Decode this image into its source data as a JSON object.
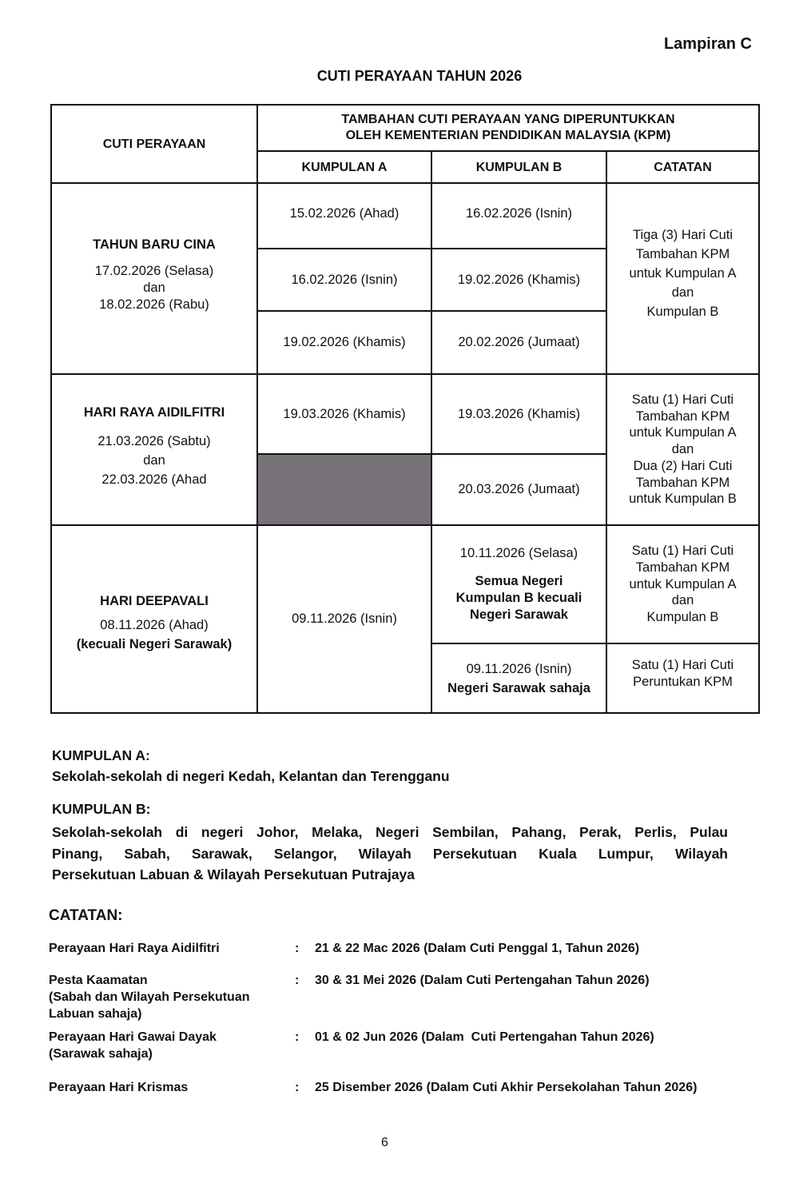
{
  "lampiran": "Lampiran C",
  "title": "CUTI PERAYAAN TAHUN 2026",
  "table": {
    "h_cuti": "CUTI PERAYAAN",
    "h_tambahan_1": "TAMBAHAN CUTI PERAYAAN YANG DIPERUNTUKKAN",
    "h_tambahan_2": "OLEH KEMENTERIAN PENDIDIKAN MALAYSIA (KPM)",
    "h_a": "KUMPULAN A",
    "h_b": "KUMPULAN B",
    "h_catatan": "CATATAN",
    "tbc": {
      "name": "TAHUN BARU CINA",
      "d1": "17.02.2026 (Selasa)",
      "dan": "dan",
      "d2": "18.02.2026 (Rabu)",
      "a": [
        "15.02.2026 (Ahad)",
        "16.02.2026 (Isnin)",
        "19.02.2026 (Khamis)"
      ],
      "b": [
        "16.02.2026 (Isnin)",
        "19.02.2026 (Khamis)",
        "20.02.2026 (Jumaat)"
      ],
      "note": [
        "Tiga (3) Hari Cuti",
        "Tambahan KPM",
        "untuk Kumpulan A",
        "dan",
        "Kumpulan B"
      ]
    },
    "hra": {
      "name": "HARI RAYA AIDILFITRI",
      "d1": "21.03.2026 (Sabtu)",
      "dan": "dan",
      "d2": "22.03.2026 (Ahad",
      "a": [
        "19.03.2026 (Khamis)"
      ],
      "b": [
        "19.03.2026 (Khamis)",
        "20.03.2026 (Jumaat)"
      ],
      "note": [
        "Satu (1) Hari Cuti",
        "Tambahan KPM",
        "untuk Kumpulan A",
        "dan",
        "Dua (2) Hari Cuti",
        "Tambahan KPM",
        "untuk Kumpulan B"
      ]
    },
    "dee": {
      "name": "HARI DEEPAVALI",
      "d1": "08.11.2026 (Ahad)",
      "d2": "(kecuali Negeri Sarawak)",
      "a": "09.11.2026 (Isnin)",
      "b1_date": "10.11.2026 (Selasa)",
      "b1_note": [
        "Semua Negeri",
        "Kumpulan B kecuali",
        "Negeri Sarawak"
      ],
      "b2_date": "09.11.2026 (Isnin)",
      "b2_note": "Negeri Sarawak sahaja",
      "note1": [
        "Satu (1) Hari Cuti",
        "Tambahan KPM",
        "untuk Kumpulan A",
        "dan",
        "Kumpulan B"
      ],
      "note2": [
        "Satu (1) Hari Cuti",
        "Peruntukan KPM"
      ]
    }
  },
  "kumpulan_a": {
    "label": "KUMPULAN A:",
    "text": "Sekolah-sekolah di negeri Kedah, Kelantan dan Terengganu"
  },
  "kumpulan_b": {
    "label": "KUMPULAN B:",
    "lines": [
      "Sekolah-sekolah di negeri Johor, Melaka, Negeri Sembilan, Pahang, Perak, Perlis, Pulau",
      "Pinang, Sabah, Sarawak, Selangor, Wilayah Persekutuan Kuala Lumpur, Wilayah",
      "Persekutuan Labuan & Wilayah Persekutuan Putrajaya"
    ]
  },
  "catatan": {
    "label": "CATATAN:",
    "rows": [
      {
        "k": [
          "Perayaan Hari Raya Aidilfitri"
        ],
        "v": "21 & 22 Mac 2026 (Dalam Cuti Penggal 1, Tahun 2026)"
      },
      {
        "k": [
          "Pesta Kaamatan",
          "(Sabah dan Wilayah Persekutuan",
          "Labuan sahaja)"
        ],
        "v": "30 & 31 Mei 2026 (Dalam Cuti Pertengahan Tahun 2026)"
      },
      {
        "k": [
          "Perayaan Hari Gawai Dayak",
          "(Sarawak sahaja)"
        ],
        "v": "01 & 02 Jun 2026 (Dalam  Cuti Pertengahan Tahun 2026)"
      },
      {
        "k": [
          "Perayaan Hari Krismas"
        ],
        "v": "25 Disember 2026 (Dalam Cuti Akhir Persekolahan Tahun 2026)"
      }
    ],
    "colon": ":"
  },
  "page_number": "6"
}
